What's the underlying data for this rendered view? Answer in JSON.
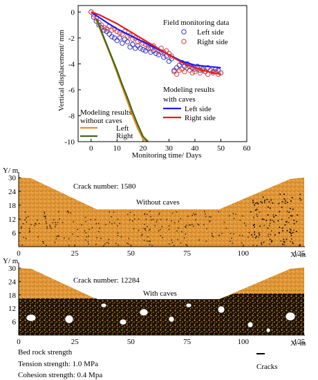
{
  "chart_data": [
    {
      "type": "line",
      "xlabel": "Monitoring time/ Days",
      "ylabel": "Vertical displacement/ mm",
      "xlim": [
        -5,
        60
      ],
      "ylim": [
        -10,
        0.5
      ],
      "xticks": [
        0,
        10,
        20,
        30,
        40,
        50,
        60
      ],
      "yticks": [
        0,
        -2,
        -4,
        -6,
        -8,
        -10
      ],
      "grid": false,
      "legend_groups": [
        {
          "title": "Field monitoring data",
          "position": "top-right",
          "entries": [
            "Left side",
            "Right side"
          ]
        },
        {
          "title": "Modeling results with caves",
          "position": "right",
          "entries": [
            "Left side",
            "Right side"
          ]
        },
        {
          "title": "Modeling results without caves",
          "position": "bottom-left",
          "entries": [
            "Left",
            "Right"
          ]
        }
      ],
      "series": [
        {
          "group": "Field monitoring data",
          "name": "Left side",
          "marker": "circle",
          "color": "#3333cc",
          "x": [
            0,
            1,
            2,
            3,
            4,
            5,
            6,
            7,
            8,
            9,
            10,
            11,
            12,
            13,
            14,
            15,
            16,
            17,
            18,
            19,
            20,
            21,
            22,
            23,
            24,
            25,
            26,
            27,
            28,
            29,
            30,
            31,
            32,
            33,
            34,
            35,
            36,
            37,
            38,
            39,
            40,
            41,
            42,
            43,
            44,
            45,
            46,
            47,
            48,
            49,
            50
          ],
          "y": [
            0,
            -0.4,
            -0.7,
            -1.0,
            -1.2,
            -1.4,
            -1.5,
            -1.7,
            -1.9,
            -2.0,
            -2.2,
            -2.0,
            -2.4,
            -2.1,
            -2.3,
            -2.7,
            -2.5,
            -2.8,
            -2.6,
            -2.8,
            -2.9,
            -3.0,
            -2.8,
            -3.1,
            -3.0,
            -3.2,
            -3.3,
            -3.1,
            -3.5,
            -3.4,
            -3.8,
            -3.6,
            -4.5,
            -4.3,
            -4.1,
            -3.9,
            -4.2,
            -4.0,
            -4.2,
            -4.3,
            -4.4,
            -4.2,
            -4.5,
            -4.4,
            -4.6,
            -4.3,
            -4.5,
            -4.6,
            -4.4,
            -4.5,
            -4.7
          ]
        },
        {
          "group": "Field monitoring data",
          "name": "Right side",
          "marker": "circle",
          "color": "#d84040",
          "x": [
            0,
            1,
            2,
            3,
            4,
            5,
            6,
            7,
            8,
            9,
            10,
            11,
            12,
            13,
            14,
            15,
            16,
            17,
            18,
            19,
            20,
            21,
            22,
            23,
            24,
            25,
            26,
            27,
            28,
            29,
            30,
            31,
            32,
            33,
            34,
            35,
            36,
            37,
            38,
            39,
            40,
            41,
            42,
            43,
            44,
            45,
            46,
            47,
            48,
            49,
            50
          ],
          "y": [
            0,
            -0.2,
            -0.5,
            -0.8,
            -1.0,
            -1.2,
            -1.3,
            -1.1,
            -1.4,
            -1.3,
            -1.5,
            -1.6,
            -1.7,
            -1.5,
            -1.9,
            -1.8,
            -2.1,
            -2.0,
            -2.3,
            -2.2,
            -2.4,
            -2.5,
            -2.6,
            -2.8,
            -2.6,
            -2.9,
            -3.0,
            -2.8,
            -3.1,
            -3.0,
            -3.2,
            -3.4,
            -4.6,
            -4.8,
            -4.5,
            -4.4,
            -4.6,
            -4.3,
            -4.5,
            -4.7,
            -4.6,
            -4.4,
            -4.7,
            -4.5,
            -4.6,
            -4.8,
            -4.5,
            -4.7,
            -4.6,
            -4.8,
            -4.7
          ]
        },
        {
          "group": "Modeling results with caves",
          "name": "Left side",
          "color": "#1a1aff",
          "x": [
            0,
            3,
            6,
            10,
            15,
            20,
            25,
            30,
            35,
            40,
            45,
            50
          ],
          "y": [
            0,
            -0.4,
            -0.8,
            -1.3,
            -1.8,
            -2.3,
            -2.8,
            -3.3,
            -3.8,
            -4.1,
            -4.2,
            -4.3
          ]
        },
        {
          "group": "Modeling results with caves",
          "name": "Right side",
          "color": "#e02020",
          "x": [
            0,
            3,
            6,
            10,
            15,
            20,
            25,
            30,
            35,
            40,
            45,
            50
          ],
          "y": [
            0,
            -0.2,
            -0.5,
            -0.9,
            -1.5,
            -2.1,
            -2.7,
            -3.3,
            -3.9,
            -4.3,
            -4.6,
            -4.8
          ]
        },
        {
          "group": "Modeling results without caves",
          "name": "Left",
          "color": "#f08a1e",
          "x": [
            2,
            4,
            6,
            8,
            10,
            12,
            14,
            16,
            18,
            20,
            21.5
          ],
          "y": [
            -0.6,
            -1.6,
            -2.6,
            -3.6,
            -4.7,
            -5.8,
            -6.9,
            -8.0,
            -9.0,
            -9.8,
            -10
          ]
        },
        {
          "group": "Modeling results without caves",
          "name": "Right",
          "color": "#3a6a1a",
          "x": [
            2,
            4,
            6,
            8,
            10,
            12,
            14,
            16,
            18,
            20,
            22
          ],
          "y": [
            -0.5,
            -1.5,
            -2.5,
            -3.5,
            -4.5,
            -5.6,
            -6.6,
            -7.7,
            -8.7,
            -9.6,
            -10
          ]
        }
      ]
    },
    {
      "type": "other",
      "ylabel": "Y/ m",
      "xlabel": "X/ m",
      "yticks": [
        6,
        12,
        18,
        24,
        30
      ],
      "xticks": [
        0,
        25,
        50,
        75,
        100,
        125
      ],
      "annotations": [
        "Crack number: 1580",
        "Without caves"
      ]
    },
    {
      "type": "other",
      "ylabel": "Y/ m",
      "xlabel": "X/ m",
      "yticks": [
        6,
        12,
        18,
        24,
        30
      ],
      "xticks": [
        0,
        25,
        50,
        75,
        100,
        125
      ],
      "annotations": [
        "Crack number: 12284",
        "With caves"
      ]
    }
  ],
  "footer": {
    "title": "Bed rock strength",
    "tension": "Tension strength: 1.0 MPa",
    "cohesion": "Cohesion strength: 0.4 Mpa",
    "legend_label": "Cracks"
  },
  "colors": {
    "rock": "#e39a3a",
    "rock_dark": "#b86a18",
    "crack": "#1a1208",
    "cave": "#ffffff"
  }
}
